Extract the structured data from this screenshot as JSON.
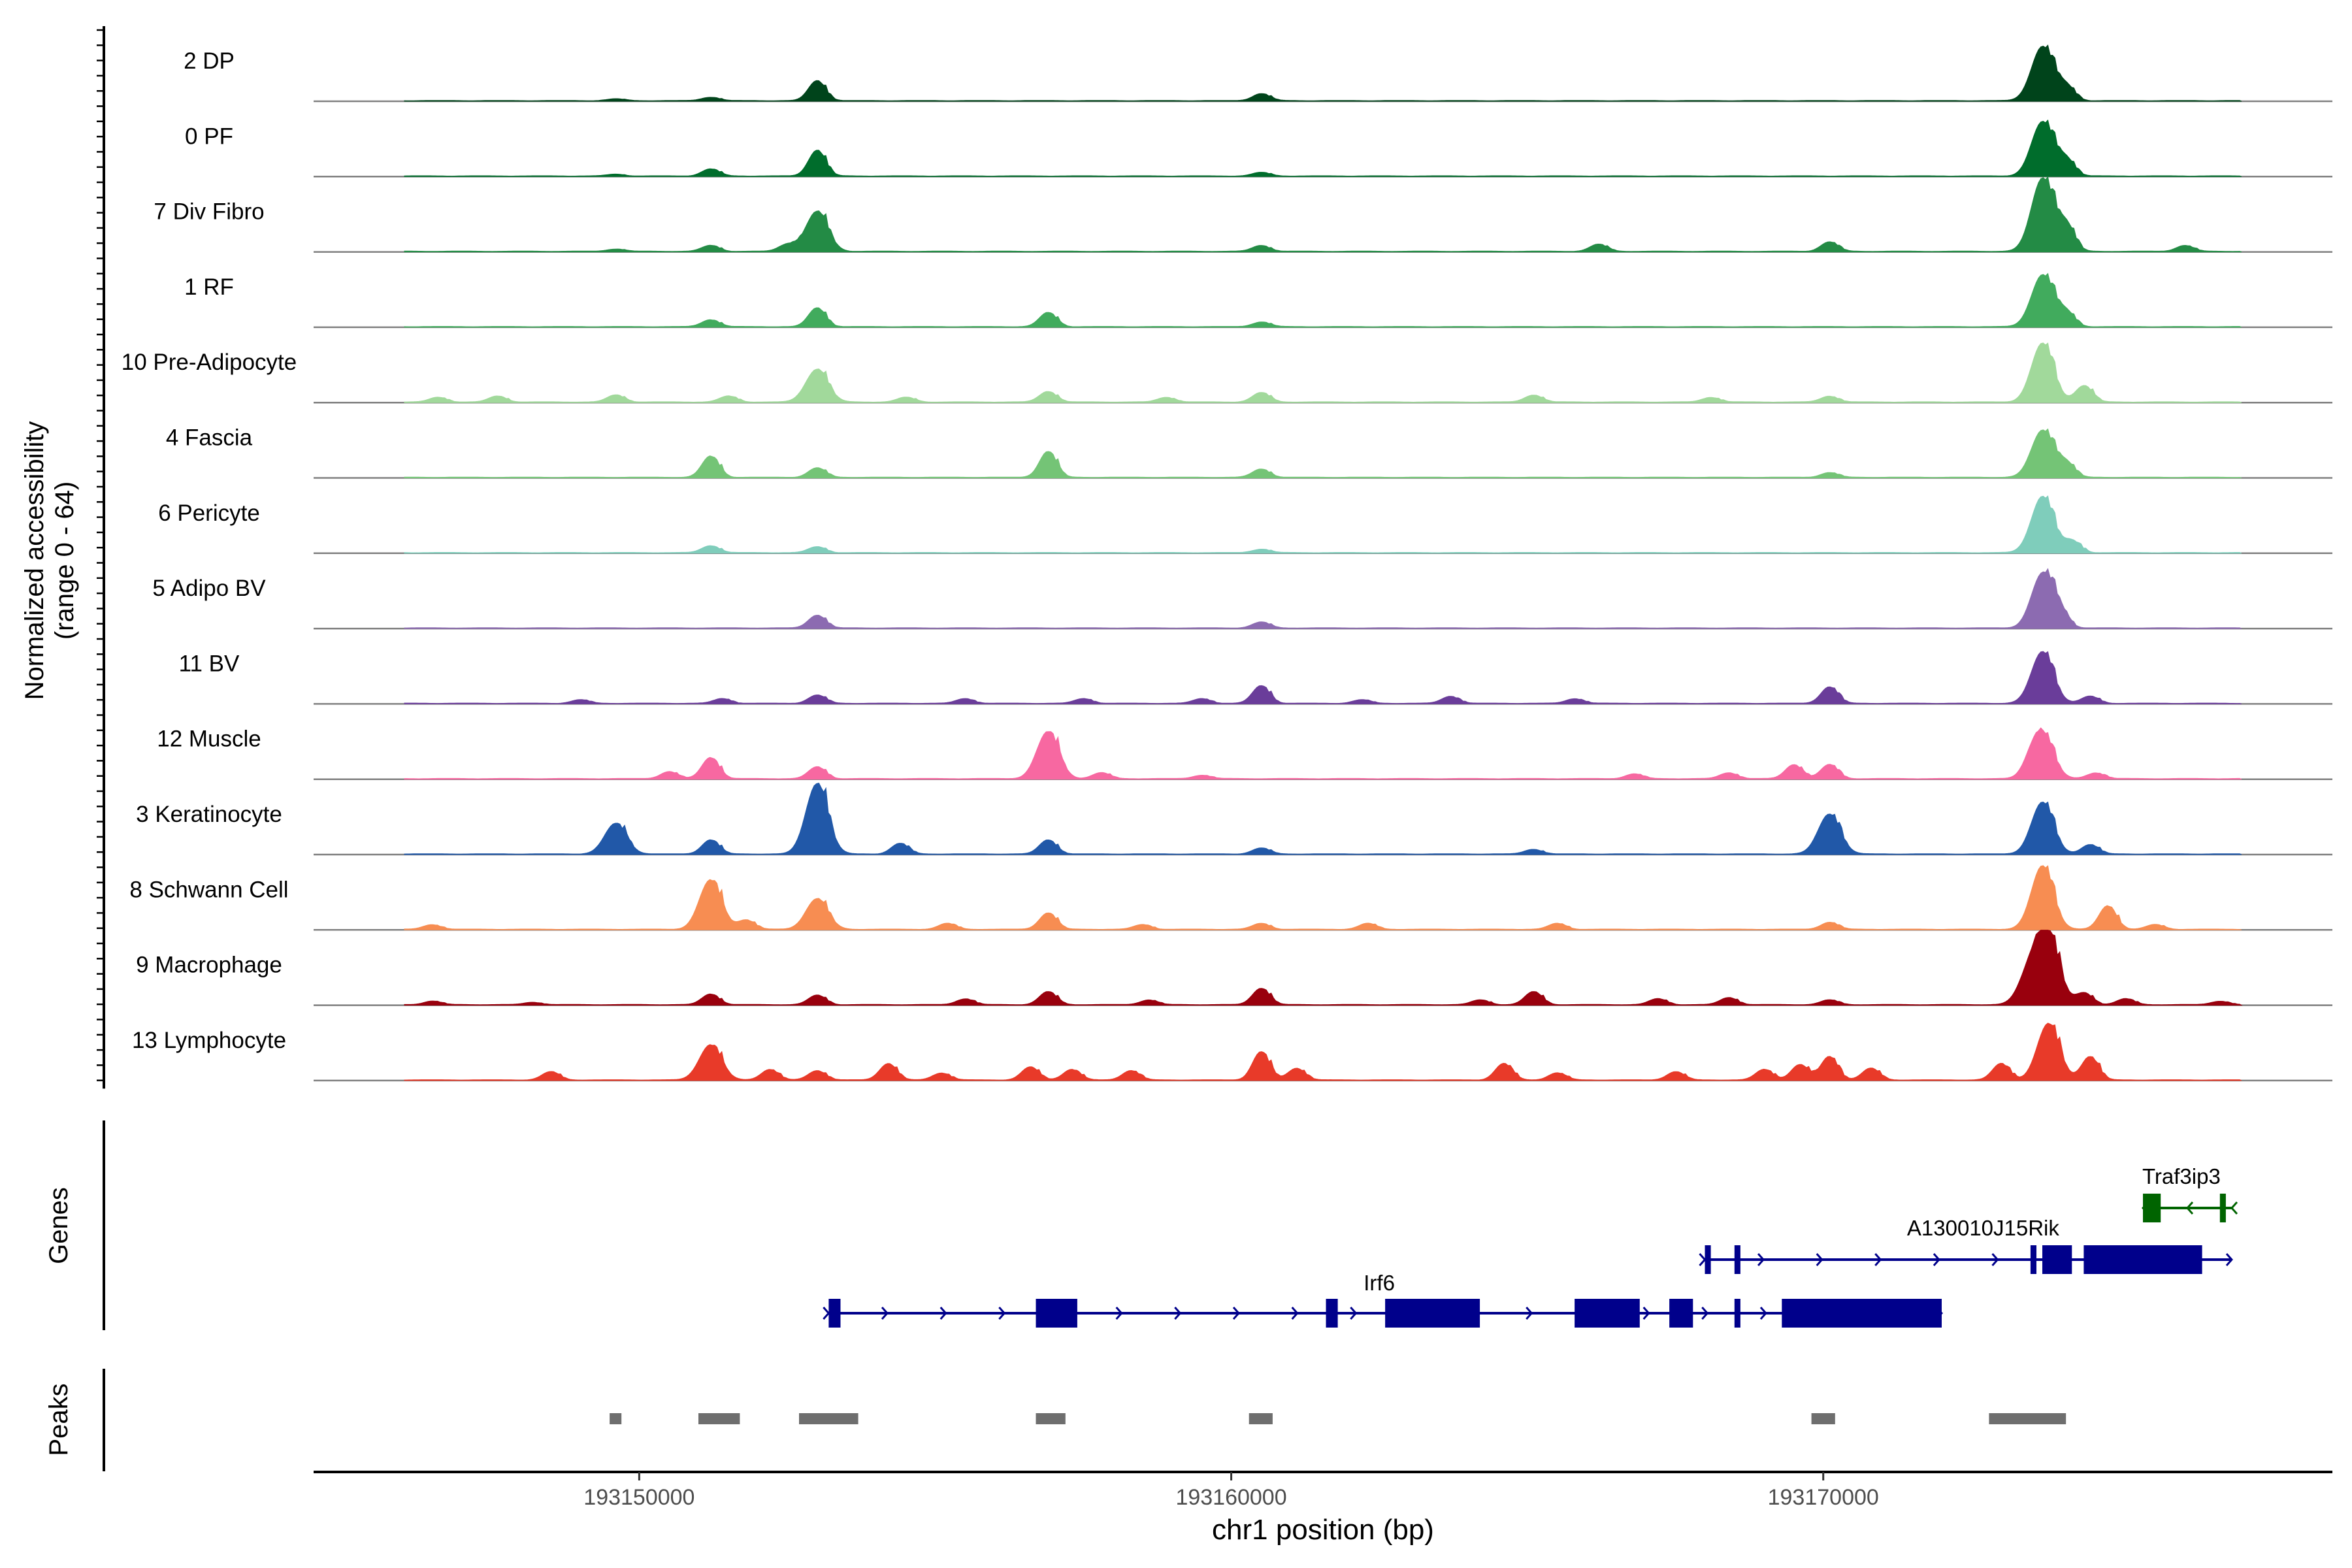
{
  "chart_data": {
    "type": "area",
    "ylabel_line1": "Normalized accessibility",
    "ylabel_line2": "(range 0 - 64)",
    "xlabel": "chr1 position (bp)",
    "xlim": [
      193144500,
      193178600
    ],
    "x_ticks": [
      193150000,
      193160000,
      193170000
    ],
    "x_tick_labels": [
      "193150000",
      "193160000",
      "193170000"
    ],
    "ylim": [
      0,
      64
    ],
    "panel_labels": {
      "genes": "Genes",
      "peaks": "Peaks"
    },
    "series": [
      {
        "name": "2 DP",
        "color": "#00441b",
        "peaks": [
          [
            193149600,
            1.5
          ],
          [
            193151200,
            3
          ],
          [
            193153000,
            17
          ],
          [
            193160500,
            6
          ],
          [
            193173700,
            46
          ],
          [
            193174100,
            12
          ]
        ]
      },
      {
        "name": "0 PF",
        "color": "#006d2c",
        "peaks": [
          [
            193149600,
            1.5
          ],
          [
            193151200,
            6
          ],
          [
            193153000,
            22
          ],
          [
            193160500,
            3
          ],
          [
            193173700,
            46
          ],
          [
            193174100,
            14
          ]
        ]
      },
      {
        "name": "7 Div Fibro",
        "color": "#238b45",
        "peaks": [
          [
            193149600,
            2
          ],
          [
            193151200,
            5
          ],
          [
            193152500,
            6
          ],
          [
            193153000,
            34
          ],
          [
            193160500,
            5
          ],
          [
            193166200,
            6
          ],
          [
            193170100,
            8
          ],
          [
            193173700,
            62
          ],
          [
            193174100,
            22
          ],
          [
            193176100,
            5
          ]
        ]
      },
      {
        "name": "1 RF",
        "color": "#41ab5d",
        "peaks": [
          [
            193151200,
            6
          ],
          [
            193153000,
            16
          ],
          [
            193156900,
            12
          ],
          [
            193160500,
            4
          ],
          [
            193173700,
            44
          ],
          [
            193174100,
            12
          ]
        ]
      },
      {
        "name": "10 Pre-Adipocyte",
        "color": "#a1d99b",
        "peaks": [
          [
            193146600,
            4
          ],
          [
            193147600,
            5
          ],
          [
            193149600,
            6
          ],
          [
            193151500,
            5
          ],
          [
            193153000,
            28
          ],
          [
            193154500,
            4
          ],
          [
            193156900,
            9
          ],
          [
            193158900,
            4
          ],
          [
            193160500,
            8
          ],
          [
            193165100,
            6
          ],
          [
            193168100,
            4
          ],
          [
            193170100,
            5
          ],
          [
            193173700,
            50
          ],
          [
            193174400,
            14
          ]
        ]
      },
      {
        "name": "4 Fascia",
        "color": "#74c476",
        "peaks": [
          [
            193151200,
            18
          ],
          [
            193153000,
            8
          ],
          [
            193156900,
            22
          ],
          [
            193160500,
            7
          ],
          [
            193170100,
            4
          ],
          [
            193173700,
            40
          ],
          [
            193174100,
            12
          ]
        ]
      },
      {
        "name": "6 Pericyte",
        "color": "#7fcdbb",
        "peaks": [
          [
            193151200,
            6
          ],
          [
            193153000,
            5
          ],
          [
            193160500,
            3
          ],
          [
            193173700,
            48
          ],
          [
            193174200,
            10
          ]
        ]
      },
      {
        "name": "5 Adipo BV",
        "color": "#8c6bb1",
        "peaks": [
          [
            193153000,
            11
          ],
          [
            193160500,
            5
          ],
          [
            193173700,
            46
          ],
          [
            193174000,
            12
          ]
        ]
      },
      {
        "name": "11 BV",
        "color": "#6a3d9a",
        "peaks": [
          [
            193149000,
            3
          ],
          [
            193151400,
            4
          ],
          [
            193153000,
            7
          ],
          [
            193155500,
            4
          ],
          [
            193157500,
            4
          ],
          [
            193159500,
            4
          ],
          [
            193160500,
            15
          ],
          [
            193162200,
            3
          ],
          [
            193163700,
            6
          ],
          [
            193165800,
            4
          ],
          [
            193170100,
            14
          ],
          [
            193173700,
            44
          ],
          [
            193174500,
            6
          ]
        ]
      },
      {
        "name": "12 Muscle",
        "color": "#f768a1",
        "peaks": [
          [
            193150500,
            6
          ],
          [
            193151200,
            18
          ],
          [
            193153000,
            10
          ],
          [
            193156900,
            40
          ],
          [
            193157800,
            5
          ],
          [
            193159500,
            3
          ],
          [
            193166800,
            4
          ],
          [
            193168400,
            5
          ],
          [
            193169500,
            12
          ],
          [
            193170100,
            12
          ],
          [
            193173500,
            8
          ],
          [
            193173700,
            38
          ],
          [
            193174600,
            5
          ]
        ]
      },
      {
        "name": "3 Keratinocyte",
        "color": "#2158a8",
        "peaks": [
          [
            193149600,
            26
          ],
          [
            193151200,
            12
          ],
          [
            193153000,
            60
          ],
          [
            193154400,
            9
          ],
          [
            193156900,
            12
          ],
          [
            193160500,
            5
          ],
          [
            193165100,
            4
          ],
          [
            193170100,
            34
          ],
          [
            193173700,
            44
          ],
          [
            193174500,
            8
          ]
        ]
      },
      {
        "name": "8 Schwann Cell",
        "color": "#f78d52",
        "peaks": [
          [
            193146500,
            4
          ],
          [
            193151200,
            42
          ],
          [
            193151800,
            8
          ],
          [
            193153000,
            26
          ],
          [
            193155200,
            5
          ],
          [
            193156900,
            14
          ],
          [
            193158500,
            4
          ],
          [
            193160500,
            5
          ],
          [
            193162300,
            5
          ],
          [
            193165500,
            5
          ],
          [
            193170100,
            6
          ],
          [
            193173700,
            54
          ],
          [
            193174800,
            20
          ],
          [
            193175600,
            4
          ]
        ]
      },
      {
        "name": "9 Macrophage",
        "color": "#99000d",
        "peaks": [
          [
            193146500,
            3
          ],
          [
            193148200,
            2
          ],
          [
            193151200,
            9
          ],
          [
            193153000,
            8
          ],
          [
            193155500,
            5
          ],
          [
            193156900,
            11
          ],
          [
            193158600,
            4
          ],
          [
            193160500,
            14
          ],
          [
            193164200,
            4
          ],
          [
            193165100,
            11
          ],
          [
            193167200,
            5
          ],
          [
            193168400,
            6
          ],
          [
            193170100,
            4
          ],
          [
            193173500,
            30
          ],
          [
            193173800,
            58
          ],
          [
            193174400,
            10
          ],
          [
            193175100,
            5
          ],
          [
            193176700,
            3
          ]
        ]
      },
      {
        "name": "13 Lymphocyte",
        "color": "#e83a29",
        "peaks": [
          [
            193148500,
            7
          ],
          [
            193151200,
            30
          ],
          [
            193152200,
            9
          ],
          [
            193153000,
            8
          ],
          [
            193154200,
            14
          ],
          [
            193155100,
            6
          ],
          [
            193156600,
            11
          ],
          [
            193157300,
            9
          ],
          [
            193158300,
            8
          ],
          [
            193160500,
            24
          ],
          [
            193161100,
            10
          ],
          [
            193164600,
            14
          ],
          [
            193165500,
            6
          ],
          [
            193167500,
            7
          ],
          [
            193169000,
            9
          ],
          [
            193169600,
            13
          ],
          [
            193170100,
            20
          ],
          [
            193170800,
            10
          ],
          [
            193173000,
            14
          ],
          [
            193173800,
            48
          ],
          [
            193174500,
            20
          ]
        ]
      }
    ],
    "genes": [
      {
        "name": "Traf3ip3",
        "color": "#006400",
        "strand": "-",
        "start": 193175400,
        "end": 193176900,
        "exons": [
          [
            193175400,
            193175700
          ],
          [
            193176700,
            193176800
          ]
        ]
      },
      {
        "name": "A130010J15Rik",
        "color": "#00008b",
        "strand": "+",
        "start": 193168000,
        "end": 193176900,
        "exons": [
          [
            193168000,
            193168100
          ],
          [
            193168500,
            193168600
          ],
          [
            193173500,
            193173600
          ],
          [
            193173700,
            193174200
          ],
          [
            193174400,
            193176400
          ]
        ]
      },
      {
        "name": "Irf6",
        "color": "#00008b",
        "strand": "+",
        "start": 193153200,
        "end": 193172000,
        "exons": [
          [
            193153200,
            193153400
          ],
          [
            193156700,
            193157400
          ],
          [
            193161600,
            193161800
          ],
          [
            193162600,
            193164200
          ],
          [
            193165800,
            193166900
          ],
          [
            193167400,
            193167800
          ],
          [
            193168500,
            193168600
          ],
          [
            193169300,
            193172000
          ]
        ]
      }
    ],
    "peaks": [
      [
        193149500,
        193149700
      ],
      [
        193151000,
        193151700
      ],
      [
        193152700,
        193153700
      ],
      [
        193156700,
        193157200
      ],
      [
        193160300,
        193160700
      ],
      [
        193169800,
        193170200
      ],
      [
        193172800,
        193174100
      ]
    ]
  }
}
